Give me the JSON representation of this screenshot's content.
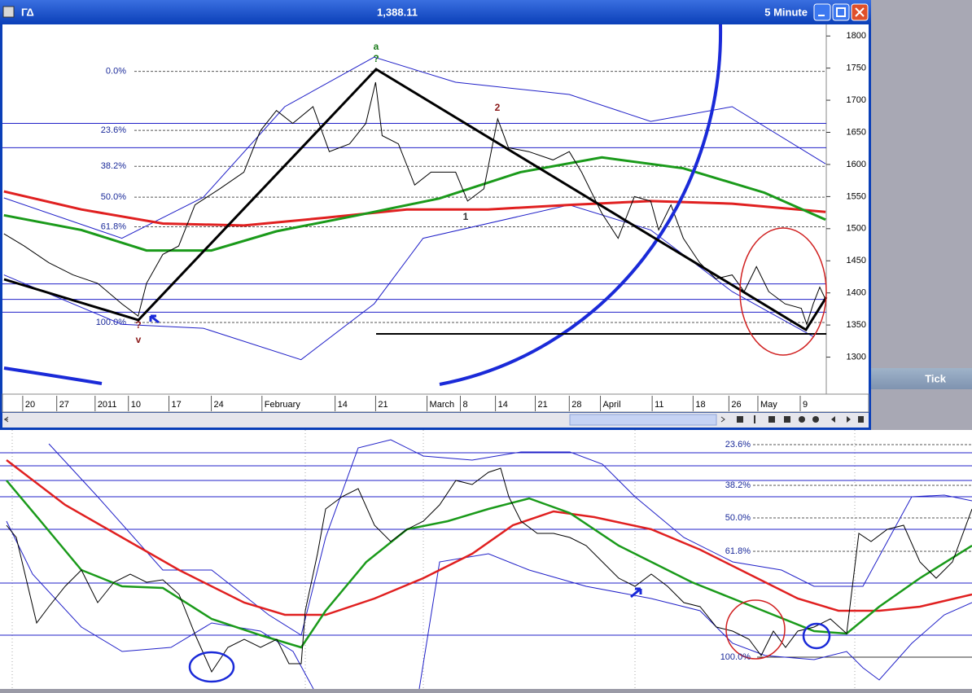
{
  "window": {
    "symbol": "ΓΔ",
    "last_price": "1,388.11",
    "interval": "5 Minute",
    "side_panel_title": "Tick"
  },
  "annotations": [
    {
      "text": "a",
      "color": "#1a7a1a"
    },
    {
      "text": "?",
      "color": "#1a7a1a"
    },
    {
      "text": "2",
      "color": "#8b1a1a"
    },
    {
      "text": "1",
      "color": "#333333"
    },
    {
      "text": "?",
      "color": "#8b1a1a"
    },
    {
      "text": "v",
      "color": "#8b1a1a"
    }
  ],
  "lower_chart": {
    "fib_labels": [
      "23.6%",
      "38.2%",
      "50.0%",
      "61.8%",
      "100.0%"
    ]
  },
  "chart_data": {
    "type": "line",
    "xlim": [
      -0.56,
      22.2
    ],
    "xticks": [
      {
        "value": 0,
        "label": "20"
      },
      {
        "value": 0.94,
        "label": "27"
      },
      {
        "value": 2.0,
        "label": "2011"
      },
      {
        "value": 2.92,
        "label": "10"
      },
      {
        "value": 4.04,
        "label": "17"
      },
      {
        "value": 5.21,
        "label": "24"
      },
      {
        "value": 6.61,
        "label": "February"
      },
      {
        "value": 8.63,
        "label": "14"
      },
      {
        "value": 9.75,
        "label": "21"
      },
      {
        "value": 11.17,
        "label": "March"
      },
      {
        "value": 12.09,
        "label": "8"
      },
      {
        "value": 13.06,
        "label": "14"
      },
      {
        "value": 14.16,
        "label": "21"
      },
      {
        "value": 15.1,
        "label": "28"
      },
      {
        "value": 15.96,
        "label": "April"
      },
      {
        "value": 17.39,
        "label": "11"
      },
      {
        "value": 18.52,
        "label": "18"
      },
      {
        "value": 19.51,
        "label": "26"
      },
      {
        "value": 20.31,
        "label": "May"
      },
      {
        "value": 21.48,
        "label": "9"
      }
    ],
    "ylim": [
      1250,
      1818
    ],
    "yticks": [
      1300,
      1350,
      1400,
      1450,
      1500,
      1550,
      1600,
      1650,
      1700,
      1750,
      1800
    ],
    "fib_levels": [
      {
        "value": 1745,
        "label": "0.0%"
      },
      {
        "value": 1653,
        "label": "23.6%"
      },
      {
        "value": 1597,
        "label": "38.2%"
      },
      {
        "value": 1549,
        "label": "50.0%"
      },
      {
        "value": 1503,
        "label": "61.8%"
      },
      {
        "value": 1354,
        "label": "100.0%"
      }
    ],
    "levels": [
      1664,
      1626,
      1414,
      1390,
      1370
    ],
    "series": [
      {
        "color": "#2020c8",
        "width": 1,
        "x": [
          -0.52,
          2.74,
          4.99,
          7.24,
          9.71,
          11.96,
          15.1,
          17.35,
          19.6,
          22.18
        ],
        "values": [
          1548,
          1485,
          1549,
          1690,
          1767,
          1728,
          1709,
          1667,
          1690,
          1601
        ]
      },
      {
        "color": "#2020c8",
        "width": 1,
        "x": [
          -0.52,
          2.74,
          4.99,
          7.69,
          9.71,
          11.06,
          15.1,
          17.35,
          19.6,
          21.84
        ],
        "values": [
          1428,
          1351,
          1345,
          1296,
          1383,
          1485,
          1537,
          1498,
          1402,
          1332
        ]
      },
      {
        "color": "#e02020",
        "width": 3,
        "x": [
          -0.52,
          1.62,
          3.87,
          6.11,
          8.36,
          10.61,
          12.85,
          15.1,
          17.35,
          19.6,
          22.18
        ],
        "values": [
          1558,
          1530,
          1508,
          1505,
          1517,
          1530,
          1530,
          1537,
          1543,
          1539,
          1526
        ]
      },
      {
        "color": "#1a9a1a",
        "width": 3,
        "x": [
          -0.52,
          1.62,
          3.42,
          5.21,
          7.01,
          9.26,
          11.51,
          13.75,
          16.0,
          18.25,
          20.49,
          22.18
        ],
        "values": [
          1521,
          1498,
          1466,
          1466,
          1496,
          1521,
          1547,
          1588,
          1611,
          1594,
          1556,
          1514
        ]
      },
      {
        "color": "#000000",
        "width": 1,
        "x": [
          -0.52,
          0.04,
          0.72,
          1.39,
          2.07,
          2.74,
          3.19,
          3.42,
          3.87,
          4.31,
          4.76,
          5.44,
          6.11,
          6.56,
          7.01,
          7.46,
          8.02,
          8.47,
          9.03,
          9.48,
          9.75,
          9.93,
          10.38,
          10.83,
          11.28,
          11.96,
          12.29,
          12.74,
          13.12,
          13.42,
          13.98,
          14.65,
          15.1,
          15.44,
          16.0,
          16.45,
          16.9,
          17.35,
          17.57,
          17.91,
          18.25,
          18.7,
          19.15,
          19.6,
          19.93,
          20.27,
          20.61,
          21.06,
          21.51,
          21.66,
          21.84,
          22.02,
          22.18
        ],
        "values": [
          1492,
          1473,
          1447,
          1428,
          1415,
          1383,
          1364,
          1415,
          1460,
          1473,
          1537,
          1562,
          1588,
          1652,
          1684,
          1664,
          1690,
          1620,
          1632,
          1664,
          1728,
          1645,
          1632,
          1568,
          1588,
          1588,
          1543,
          1562,
          1671,
          1626,
          1620,
          1607,
          1620,
          1588,
          1524,
          1485,
          1550,
          1543,
          1498,
          1537,
          1485,
          1447,
          1422,
          1428,
          1402,
          1441,
          1402,
          1383,
          1376,
          1351,
          1383,
          1409,
          1390
        ]
      }
    ]
  }
}
